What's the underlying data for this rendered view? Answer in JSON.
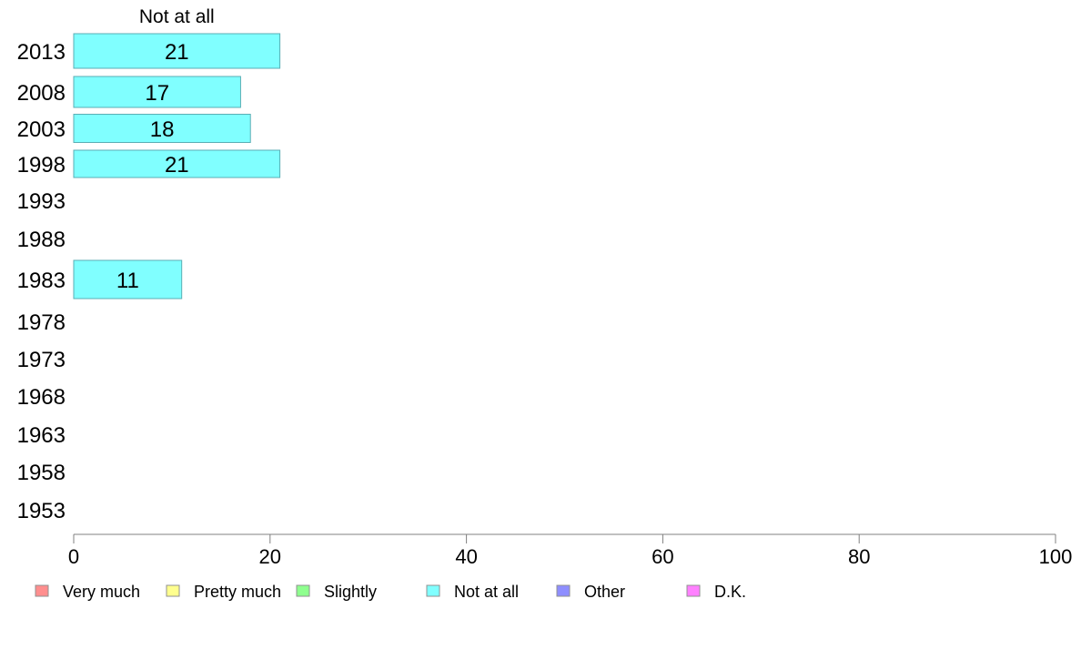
{
  "chart_data": {
    "type": "bar",
    "orientation": "horizontal",
    "series_header": "Not at all",
    "categories": [
      "2013",
      "2008",
      "2003",
      "1998",
      "1993",
      "1988",
      "1983",
      "1978",
      "1973",
      "1968",
      "1963",
      "1958",
      "1953"
    ],
    "series": [
      {
        "name": "Not at all",
        "values": [
          21,
          17,
          18,
          21,
          null,
          null,
          11,
          null,
          null,
          null,
          null,
          null,
          null
        ]
      }
    ],
    "data_labels": [
      "21",
      "17",
      "18",
      "21",
      "",
      "",
      "11",
      "",
      "",
      "",
      "",
      "",
      ""
    ],
    "xlim": [
      0,
      100
    ],
    "x_ticks": [
      0,
      20,
      40,
      60,
      80,
      100
    ],
    "xlabel": "",
    "ylabel": "",
    "title": "",
    "grid": false,
    "legend_position": "bottom",
    "legend": [
      {
        "label": "Very much",
        "color": "#ff8e8e"
      },
      {
        "label": "Pretty much",
        "color": "#ffff8e"
      },
      {
        "label": "Slightly",
        "color": "#8eff8e"
      },
      {
        "label": "Not at all",
        "color": "#80ffff"
      },
      {
        "label": "Other",
        "color": "#8e8eff"
      },
      {
        "label": "D.K.",
        "color": "#ff80ff"
      }
    ],
    "bar_color": "#80ffff",
    "bar_border_color": "#5aaeb4"
  }
}
